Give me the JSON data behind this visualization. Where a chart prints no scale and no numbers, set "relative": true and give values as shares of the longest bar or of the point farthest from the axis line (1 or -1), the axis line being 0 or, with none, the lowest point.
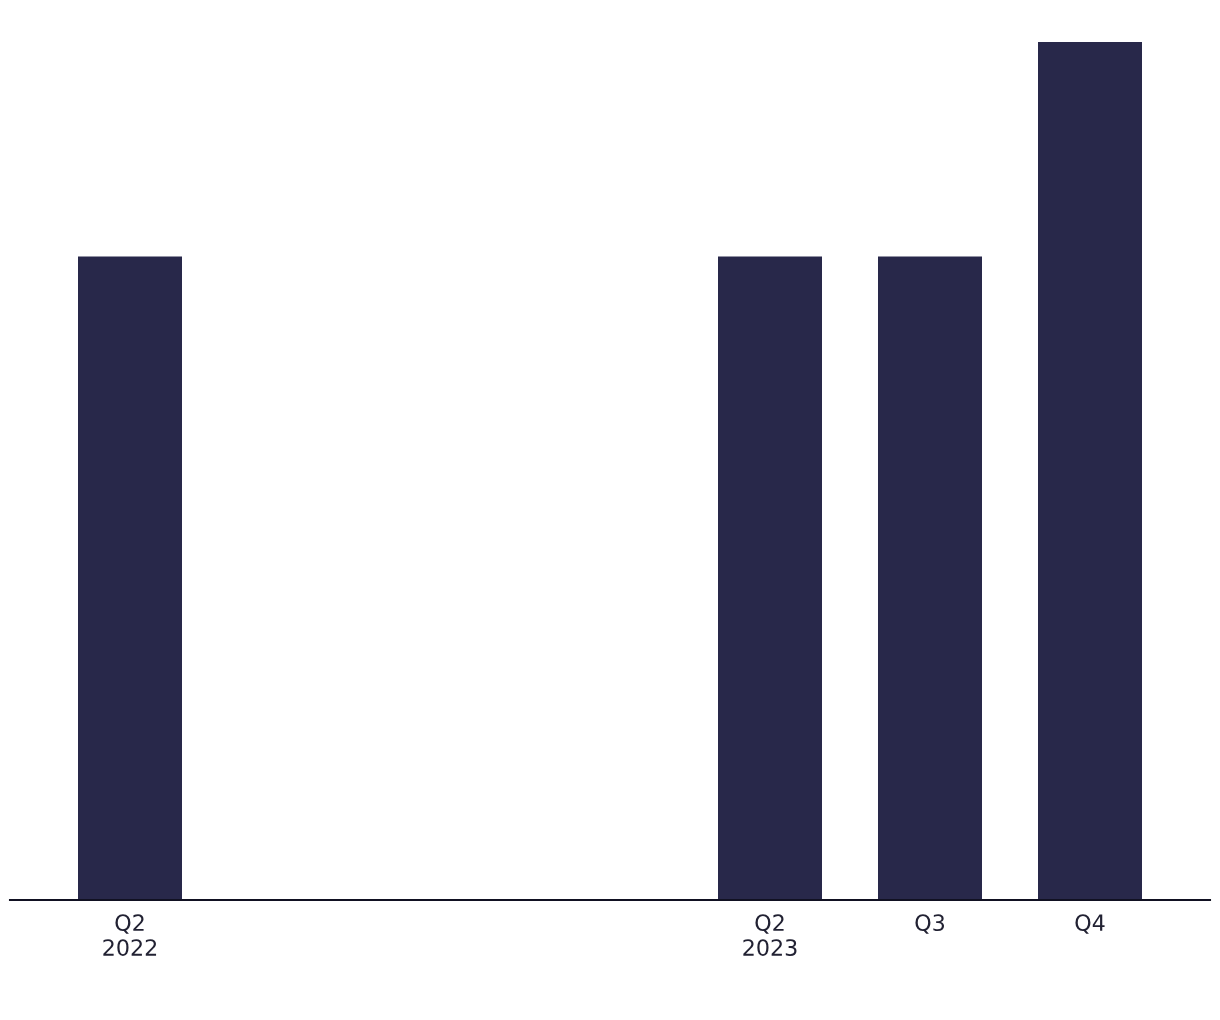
{
  "chart_data": {
    "type": "bar",
    "relative": true,
    "grid": false,
    "legend": false,
    "categories": [
      "Q2\n2022",
      null,
      null,
      null,
      "Q2\n2023",
      "Q3",
      "Q4"
    ],
    "values": [
      0.75,
      null,
      null,
      null,
      0.75,
      0.75,
      1
    ],
    "color": "#28284a"
  }
}
